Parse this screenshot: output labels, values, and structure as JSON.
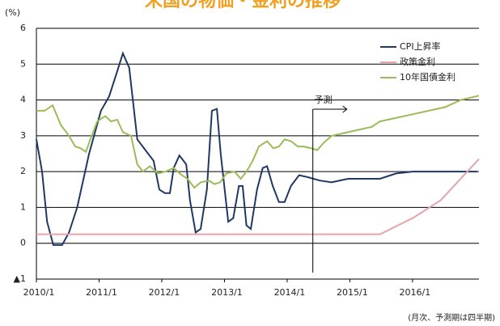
{
  "chart_data": {
    "type": "line",
    "title": "米国の物価・金利の推移",
    "y_unit": "(%)",
    "note": "(月次、予測期は四半期)",
    "xlim": [
      2010,
      2017.06
    ],
    "xticks": [
      {
        "value": 2010,
        "label": "2010/1"
      },
      {
        "value": 2011,
        "label": "2011/1"
      },
      {
        "value": 2012,
        "label": "2012/1"
      },
      {
        "value": 2013,
        "label": "2013/1"
      },
      {
        "value": 2014,
        "label": "2014/1"
      },
      {
        "value": 2015,
        "label": "2015/1"
      },
      {
        "value": 2016,
        "label": "2016/1"
      }
    ],
    "ylim": [
      -1,
      6
    ],
    "yticks": [
      {
        "value": -1,
        "label": "▲1"
      },
      0,
      1,
      2,
      3,
      4,
      5,
      6
    ],
    "grid": true,
    "legend": "upper right",
    "annotations": [
      {
        "text": "予測",
        "x": 2014.41
      }
    ],
    "series": [
      {
        "name": "CPI上昇率",
        "color": "#1f3864",
        "x": [
          2010,
          2010.09,
          2010.17,
          2010.27,
          2010.41,
          2010.52,
          2010.65,
          2010.84,
          2011.03,
          2011.16,
          2011.29,
          2011.38,
          2011.48,
          2011.61,
          2011.74,
          2011.87,
          2011.96,
          2012.05,
          2012.13,
          2012.19,
          2012.28,
          2012.39,
          2012.45,
          2012.54,
          2012.62,
          2012.72,
          2012.8,
          2012.88,
          2012.94,
          2013.06,
          2013.14,
          2013.23,
          2013.29,
          2013.35,
          2013.42,
          2013.52,
          2013.61,
          2013.68,
          2013.77,
          2013.87,
          2013.96,
          2014.06,
          2014.19,
          2014.32,
          2014.52,
          2014.71,
          2014.97,
          2015.48,
          2015.74,
          2016,
          2016.52,
          2017.03
        ],
        "values": [
          2.9,
          2.0,
          0.6,
          -0.05,
          -0.05,
          0.3,
          1.0,
          2.5,
          3.7,
          4.1,
          4.8,
          5.3,
          4.9,
          2.9,
          2.6,
          2.3,
          1.5,
          1.4,
          1.4,
          2.1,
          2.45,
          2.2,
          1.2,
          0.3,
          0.4,
          1.5,
          3.7,
          3.75,
          2.5,
          0.6,
          0.7,
          1.6,
          1.6,
          0.5,
          0.4,
          1.5,
          2.1,
          2.15,
          1.6,
          1.15,
          1.15,
          1.6,
          1.9,
          1.85,
          1.75,
          1.7,
          1.8,
          1.8,
          1.95,
          2.0,
          2.0,
          2.0
        ]
      },
      {
        "name": "政策金利",
        "color": "#e6a3ab",
        "x": [
          2010,
          2015.48,
          2016,
          2016.45,
          2017.06
        ],
        "values": [
          0.25,
          0.25,
          0.7,
          1.2,
          2.35
        ]
      },
      {
        "name": "10年国債金利",
        "color": "#9bbb59",
        "x": [
          2010,
          2010.13,
          2010.26,
          2010.39,
          2010.52,
          2010.62,
          2010.71,
          2010.79,
          2010.86,
          2010.97,
          2011.1,
          2011.19,
          2011.29,
          2011.38,
          2011.51,
          2011.61,
          2011.7,
          2011.81,
          2011.94,
          2012.06,
          2012.19,
          2012.32,
          2012.41,
          2012.52,
          2012.62,
          2012.75,
          2012.84,
          2012.93,
          2013.03,
          2013.16,
          2013.26,
          2013.35,
          2013.45,
          2013.55,
          2013.68,
          2013.78,
          2013.87,
          2013.96,
          2014.06,
          2014.17,
          2014.26,
          2014.39,
          2014.48,
          2014.58,
          2014.71,
          2014.97,
          2015.35,
          2015.48,
          2016,
          2016.52,
          2016.77,
          2017.06
        ],
        "values": [
          3.7,
          3.7,
          3.85,
          3.3,
          3.0,
          2.7,
          2.65,
          2.55,
          2.9,
          3.4,
          3.55,
          3.4,
          3.45,
          3.1,
          3.0,
          2.2,
          2.0,
          2.15,
          1.95,
          2.0,
          2.1,
          1.9,
          1.8,
          1.55,
          1.7,
          1.75,
          1.65,
          1.7,
          1.95,
          2.0,
          1.8,
          2.0,
          2.3,
          2.7,
          2.85,
          2.65,
          2.7,
          2.9,
          2.85,
          2.7,
          2.7,
          2.65,
          2.6,
          2.8,
          3.0,
          3.1,
          3.25,
          3.4,
          3.6,
          3.8,
          4.0,
          4.12
        ]
      }
    ]
  }
}
